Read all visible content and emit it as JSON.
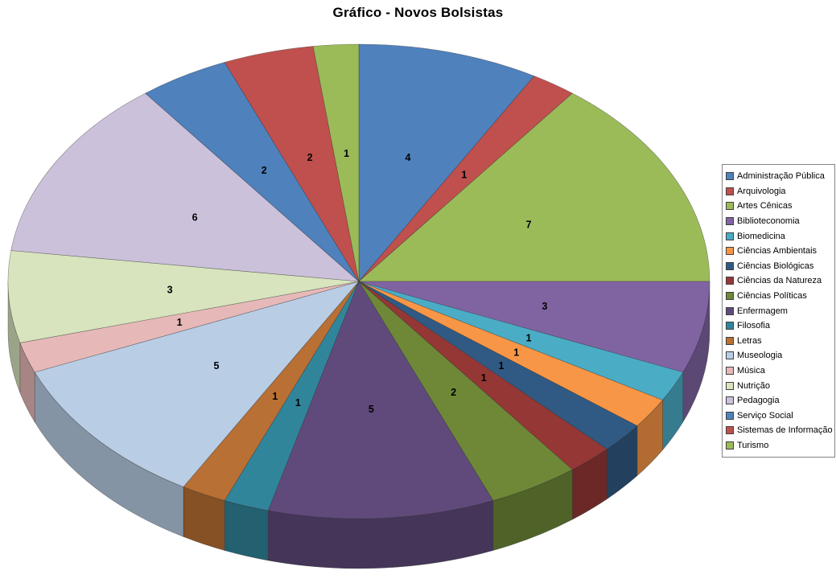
{
  "page": {
    "background_color": "#FFFFFF"
  },
  "chart_data": {
    "type": "pie",
    "style": "3d",
    "title": "Gráfico - Novos Bolsistas",
    "direction": "clockwise",
    "start_angle_deg": 0,
    "data_labels": "value",
    "legend_position": "right",
    "total": 48,
    "categories": [
      "Administração Pública",
      "Arquivologia",
      "Artes Cênicas",
      "Biblioteconomia",
      "Biomedicina",
      "Ciências Ambientais",
      "Ciências Biológicas",
      "Ciências da Natureza",
      "Ciências Políticas",
      "Enfermagem",
      "Filosofia",
      "Letras",
      "Museologia",
      "Música",
      "Nutrição",
      "Pedagogia",
      "Serviço Social",
      "Sistemas de Informação",
      "Turismo"
    ],
    "values": [
      4,
      1,
      7,
      3,
      1,
      1,
      1,
      1,
      2,
      5,
      1,
      1,
      5,
      1,
      3,
      6,
      2,
      2,
      1
    ],
    "colors": [
      "#4F81BD",
      "#C0504D",
      "#9BBB59",
      "#8064A2",
      "#4BACC6",
      "#F79646",
      "#305A83",
      "#953735",
      "#6E8838",
      "#604A7B",
      "#31859B",
      "#B97034",
      "#B9CDE5",
      "#E6B9B8",
      "#D7E4BD",
      "#CCC1DA",
      "#4F81BD",
      "#C0504D",
      "#9BBB59"
    ]
  }
}
